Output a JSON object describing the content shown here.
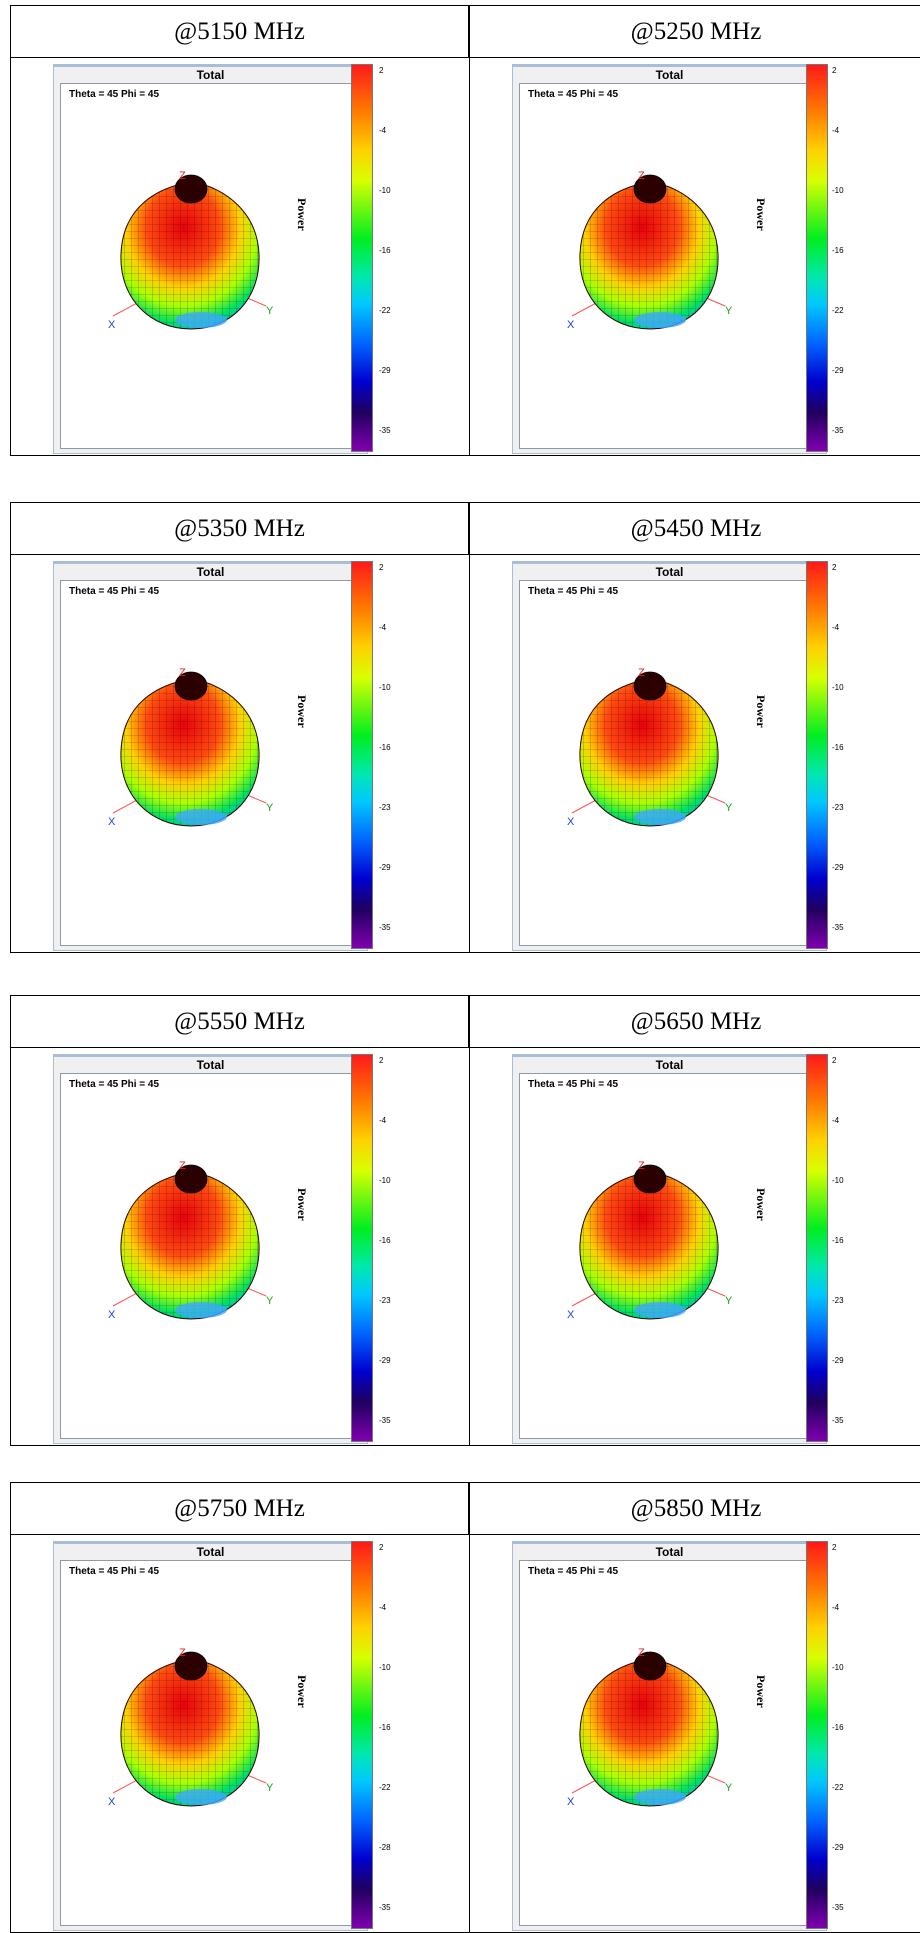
{
  "panel_title": "Total",
  "view_label": "Theta = 45 Phi = 45",
  "colorbar_label": "Power",
  "axis_labels": {
    "x": "X",
    "y": "Y",
    "z": "Z"
  },
  "rows": [
    {
      "left": {
        "frequency": "@5150 MHz",
        "ticks": [
          "2",
          "-4",
          "-10",
          "-16",
          "-22",
          "-29",
          "-35"
        ]
      },
      "right": {
        "frequency": "@5250 MHz",
        "ticks": [
          "2",
          "-4",
          "-10",
          "-16",
          "-22",
          "-29",
          "-35"
        ]
      }
    },
    {
      "left": {
        "frequency": "@5350 MHz",
        "ticks": [
          "2",
          "-4",
          "-10",
          "-16",
          "-23",
          "-29",
          "-35"
        ]
      },
      "right": {
        "frequency": "@5450 MHz",
        "ticks": [
          "2",
          "-4",
          "-10",
          "-16",
          "-23",
          "-29",
          "-35"
        ]
      }
    },
    {
      "left": {
        "frequency": "@5550 MHz",
        "ticks": [
          "2",
          "-4",
          "-10",
          "-16",
          "-23",
          "-29",
          "-35"
        ]
      },
      "right": {
        "frequency": "@5650 MHz",
        "ticks": [
          "2",
          "-4",
          "-10",
          "-16",
          "-23",
          "-29",
          "-35"
        ]
      }
    },
    {
      "left": {
        "frequency": "@5750 MHz",
        "ticks": [
          "2",
          "-4",
          "-10",
          "-16",
          "-22",
          "-28",
          "-35"
        ]
      },
      "right": {
        "frequency": "@5850 MHz",
        "ticks": [
          "2",
          "-4",
          "-10",
          "-16",
          "-22",
          "-29",
          "-35"
        ]
      }
    }
  ]
}
